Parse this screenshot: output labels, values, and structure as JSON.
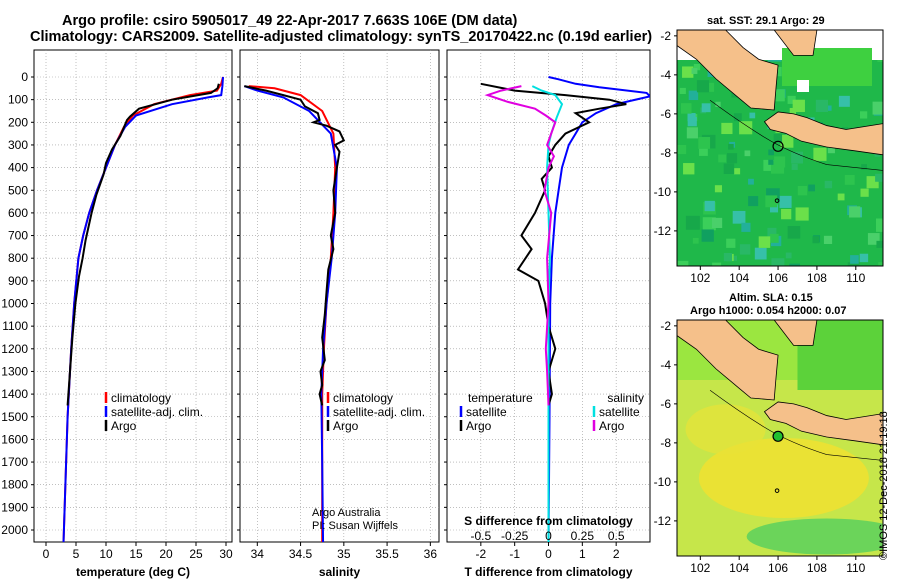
{
  "header": {
    "title_line1": "Argo profile: csiro 5905017_49 22-Apr-2017 7.663S 106E (DM data)",
    "title_line2": "Climatology: CARS2009. Satellite-adjusted climatology: synTS_20170422.nc (0.19d earlier)"
  },
  "colors": {
    "climatology": "#ff0000",
    "satellite": "#0000ff",
    "argo": "#000000",
    "sat_salinity": "#00e0e0",
    "argo_salinity": "#e000e0",
    "land": "#f5c08a"
  },
  "map_sst": {
    "title": "sat. SST: 29.1 Argo: 29",
    "x_ticks": [
      "102",
      "104",
      "106",
      "108",
      "110"
    ],
    "y_ticks": [
      "-2",
      "-4",
      "-6",
      "-8",
      "-10",
      "-12"
    ],
    "float_position": {
      "lon": 106.0,
      "lat": -7.663
    }
  },
  "map_sla": {
    "title_line1": "Altim. SLA: 0.15",
    "title_line2": "Argo h1000: 0.054 h2000: 0.07",
    "x_ticks": [
      "102",
      "104",
      "106",
      "108",
      "110"
    ],
    "y_ticks": [
      "-2",
      "-4",
      "-6",
      "-8",
      "-10",
      "-12"
    ],
    "float_position": {
      "lon": 106.0,
      "lat": -7.663
    }
  },
  "credit": "©IMOS 12-Dec-2018 21:19:18",
  "chart_data": [
    {
      "type": "line",
      "name": "temperature",
      "xlabel": "temperature (deg C)",
      "ylabel": "",
      "xlim": [
        -2,
        31
      ],
      "ylim": [
        2080,
        0
      ],
      "x_ticks": [
        0,
        5,
        10,
        15,
        20,
        25,
        30
      ],
      "x_tick_labels": [
        "0",
        "5",
        "10",
        "15",
        "20",
        "25",
        "30"
      ],
      "y_ticks": [
        0,
        100,
        200,
        300,
        400,
        500,
        600,
        700,
        800,
        900,
        1000,
        1100,
        1200,
        1300,
        1400,
        1500,
        1600,
        1700,
        1800,
        1900,
        2000
      ],
      "y_tick_labels": [
        "0",
        "100",
        "200",
        "300",
        "400",
        "500",
        "600",
        "700",
        "800",
        "900",
        "1000",
        "1100",
        "1200",
        "1300",
        "1400",
        "1500",
        "1600",
        "1700",
        "1800",
        "1900",
        "2000"
      ],
      "legend": {
        "position": "bottom-right",
        "entries": [
          "climatology",
          "satellite-adj. clim.",
          "Argo"
        ]
      },
      "series": [
        {
          "name": "climatology",
          "color": "#ff0000",
          "x": [
            29.5,
            29.2,
            28.5,
            24,
            18,
            14.5,
            13,
            11.5,
            10,
            8.5,
            7.2,
            6.2,
            5.4,
            4.7,
            4.2,
            3.6,
            2.9
          ],
          "y": [
            0,
            30,
            60,
            80,
            120,
            170,
            220,
            300,
            400,
            500,
            600,
            700,
            800,
            1000,
            1200,
            1500,
            2070
          ]
        },
        {
          "name": "satellite-adj. clim.",
          "color": "#0000ff",
          "x": [
            29.5,
            29.4,
            29.2,
            27,
            21,
            15,
            13.2,
            11.5,
            10,
            8.5,
            7.2,
            6.2,
            5.4,
            4.7,
            4.2,
            3.6,
            2.9
          ],
          "y": [
            0,
            40,
            80,
            90,
            120,
            170,
            220,
            300,
            400,
            500,
            600,
            700,
            800,
            1000,
            1200,
            1500,
            2070
          ]
        },
        {
          "name": "Argo",
          "color": "#000000",
          "x": [
            28.8,
            28.6,
            27.5,
            21,
            15.5,
            14,
            13.5,
            12.4,
            11,
            10,
            9.6,
            8.4,
            7.6,
            7.1,
            6.6,
            6.1,
            5.5,
            4.9,
            4.4,
            4.0,
            3.6
          ],
          "y": [
            30,
            50,
            70,
            100,
            140,
            175,
            190,
            260,
            320,
            380,
            430,
            520,
            600,
            660,
            720,
            800,
            880,
            1000,
            1150,
            1300,
            1450
          ]
        }
      ]
    },
    {
      "type": "line",
      "name": "salinity",
      "xlabel": "salinity",
      "ylabel": "",
      "xlim": [
        33.8,
        36.1
      ],
      "ylim": [
        2080,
        0
      ],
      "x_ticks": [
        34,
        34.5,
        35,
        35.5,
        36
      ],
      "x_tick_labels": [
        "34",
        "34.5",
        "35",
        "35.5",
        "36"
      ],
      "legend": {
        "position": "bottom-right",
        "entries": [
          "climatology",
          "satellite-adj. clim.",
          "Argo"
        ]
      },
      "annotation": [
        "Argo Australia",
        "PI: Susan Wijffels"
      ],
      "series": [
        {
          "name": "climatology",
          "color": "#ff0000",
          "x": [
            33.9,
            34.2,
            34.5,
            34.75,
            34.88,
            34.9,
            34.88,
            34.85,
            34.8,
            34.77,
            34.75,
            34.75,
            34.75
          ],
          "y": [
            40,
            50,
            80,
            150,
            250,
            400,
            600,
            800,
            1000,
            1200,
            1400,
            1700,
            2070
          ]
        },
        {
          "name": "satellite-adj. clim.",
          "color": "#0000ff",
          "x": [
            33.85,
            34.0,
            34.3,
            34.6,
            34.85,
            34.92,
            34.9,
            34.86,
            34.8,
            34.76,
            34.74,
            34.75,
            34.76
          ],
          "y": [
            40,
            60,
            90,
            150,
            250,
            400,
            600,
            800,
            1000,
            1200,
            1400,
            1700,
            2070
          ]
        },
        {
          "name": "Argo",
          "color": "#000000",
          "x": [
            33.85,
            34.1,
            34.3,
            34.5,
            34.55,
            34.7,
            34.72,
            34.65,
            34.8,
            34.95,
            35.0,
            34.9,
            34.95,
            34.92,
            34.88,
            34.9,
            34.85,
            34.88,
            34.82,
            34.8,
            34.78,
            34.75,
            34.78,
            34.73,
            34.75,
            34.72,
            34.75
          ],
          "y": [
            40,
            60,
            80,
            100,
            130,
            160,
            190,
            200,
            215,
            240,
            280,
            300,
            330,
            400,
            500,
            600,
            700,
            760,
            850,
            950,
            1050,
            1150,
            1250,
            1300,
            1360,
            1400,
            1450
          ]
        }
      ]
    },
    {
      "type": "line",
      "name": "difference",
      "xlabel": "T difference from climatology",
      "xlabel_secondary": "S difference from climatology",
      "xlim": [
        -3.0,
        3.0
      ],
      "ylim": [
        2080,
        0
      ],
      "x_ticks": [
        -2,
        -1,
        0,
        1,
        2
      ],
      "x_tick_labels": [
        "-2",
        "-1",
        "0",
        "1",
        "2"
      ],
      "x2_ticks": [
        -0.5,
        -0.25,
        0,
        0.25,
        0.5
      ],
      "x2_tick_labels": [
        "-0.5",
        "-0.25",
        "0",
        "0.25",
        "0.5"
      ],
      "legend": {
        "position": "bottom",
        "temperature_title": "temperature",
        "salinity_title": "salinity",
        "entries": [
          "satellite",
          "Argo",
          "satellite",
          "Argo"
        ]
      },
      "series": [
        {
          "name": "temperature satellite",
          "color": "#0000ff",
          "x": [
            0,
            0.3,
            0.8,
            1.5,
            2.9,
            3.0,
            2.0,
            1.4,
            1.0,
            0.8,
            0.6,
            0.4,
            0.3,
            0.2,
            0.1,
            0.05,
            0.03,
            0
          ],
          "y": [
            0,
            10,
            30,
            45,
            70,
            85,
            120,
            160,
            200,
            250,
            300,
            400,
            500,
            600,
            800,
            1000,
            1500,
            2070
          ]
        },
        {
          "name": "temperature Argo",
          "color": "#000000",
          "x": [
            -2.0,
            -1.0,
            0.5,
            1.8,
            2.3,
            1.5,
            0.8,
            1.2,
            0.5,
            0.2,
            0.0,
            0.1,
            -0.2,
            -0.1,
            -0.4,
            -0.8,
            -0.5,
            -0.9,
            -0.3,
            -0.1,
            0.0,
            0.2,
            0.0,
            0.1,
            0.0
          ],
          "y": [
            30,
            60,
            80,
            100,
            120,
            140,
            160,
            200,
            250,
            300,
            350,
            400,
            450,
            500,
            600,
            700,
            760,
            850,
            900,
            1000,
            1100,
            1200,
            1300,
            1400,
            1450
          ]
        },
        {
          "name": "salinity satellite",
          "color": "#00e0e0",
          "x": [
            -0.12,
            -0.05,
            0.05,
            0.1,
            0.06,
            0.02,
            0.0,
            -0.01,
            0.0,
            0.01,
            0.0,
            0.0,
            0.0,
            0.0
          ],
          "y": [
            40,
            60,
            80,
            120,
            180,
            250,
            300,
            400,
            600,
            800,
            1000,
            1200,
            1600,
            2070
          ]
        },
        {
          "name": "salinity Argo",
          "color": "#e000e0",
          "x": [
            -0.2,
            -0.35,
            -0.45,
            -0.3,
            -0.1,
            -0.02,
            0.05,
            0.02,
            -0.01,
            0.04,
            0.0,
            -0.03,
            0.02,
            -0.01,
            0.0,
            -0.02,
            -0.01,
            0.0
          ],
          "y": [
            40,
            60,
            80,
            110,
            140,
            170,
            200,
            250,
            300,
            350,
            400,
            500,
            600,
            800,
            1000,
            1200,
            1300,
            1450
          ]
        }
      ]
    }
  ]
}
